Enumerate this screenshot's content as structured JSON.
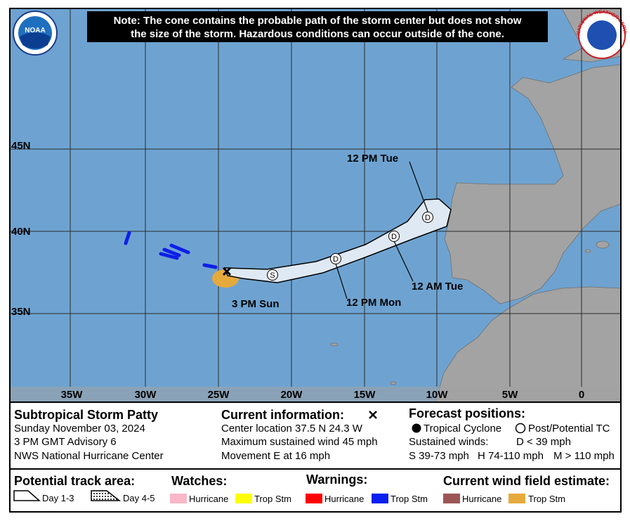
{
  "map": {
    "note": [
      "Note: The cone contains the probable path of the storm center but does not show",
      "the size of the storm. Hazardous conditions can occur outside of the cone."
    ],
    "logos": {
      "left": "NOAA",
      "right": "NATIONAL WEATHER SERVICE"
    },
    "lat_labels": [
      "45N",
      "40N",
      "35N"
    ],
    "lon_labels": [
      "35W",
      "30W",
      "25W",
      "20W",
      "15W",
      "10W",
      "5W",
      "0"
    ],
    "forecast_points": [
      "S",
      "D",
      "D",
      "D"
    ],
    "time_labels": [
      "3 PM Sun",
      "12 PM Mon",
      "12 AM Tue",
      "12 PM Tue"
    ]
  },
  "storm": {
    "name": "Subtropical Storm Patty",
    "date": "Sunday November 03, 2024",
    "advisory": "3 PM GMT Advisory 6",
    "center": "NWS National Hurricane Center"
  },
  "current": {
    "heading": "Current information:",
    "lines": [
      "Center location 37.5 N 24.3 W",
      "Maximum sustained wind 45 mph",
      "Movement E at 16 mph"
    ]
  },
  "forecast": {
    "heading": "Forecast positions:",
    "tropical_cyclone": "Tropical Cyclone",
    "post_tc": "Post/Potential TC",
    "sustained": "Sustained winds:",
    "d": "D < 39 mph",
    "s": "S 39-73 mph",
    "h": "H 74-110 mph",
    "m": "M > 110 mph"
  },
  "legend": {
    "track": {
      "heading": "Potential track area:",
      "day13": "Day 1-3",
      "day45": "Day 4-5"
    },
    "watches": {
      "heading": "Watches:",
      "hurricane": "Hurricane",
      "trop": "Trop Stm"
    },
    "warnings": {
      "heading": "Warnings:",
      "hurricane": "Hurricane",
      "trop": "Trop Stm"
    },
    "wind": {
      "heading": "Current wind field estimate:",
      "hurricane": "Hurricane",
      "trop": "Trop Stm"
    }
  }
}
